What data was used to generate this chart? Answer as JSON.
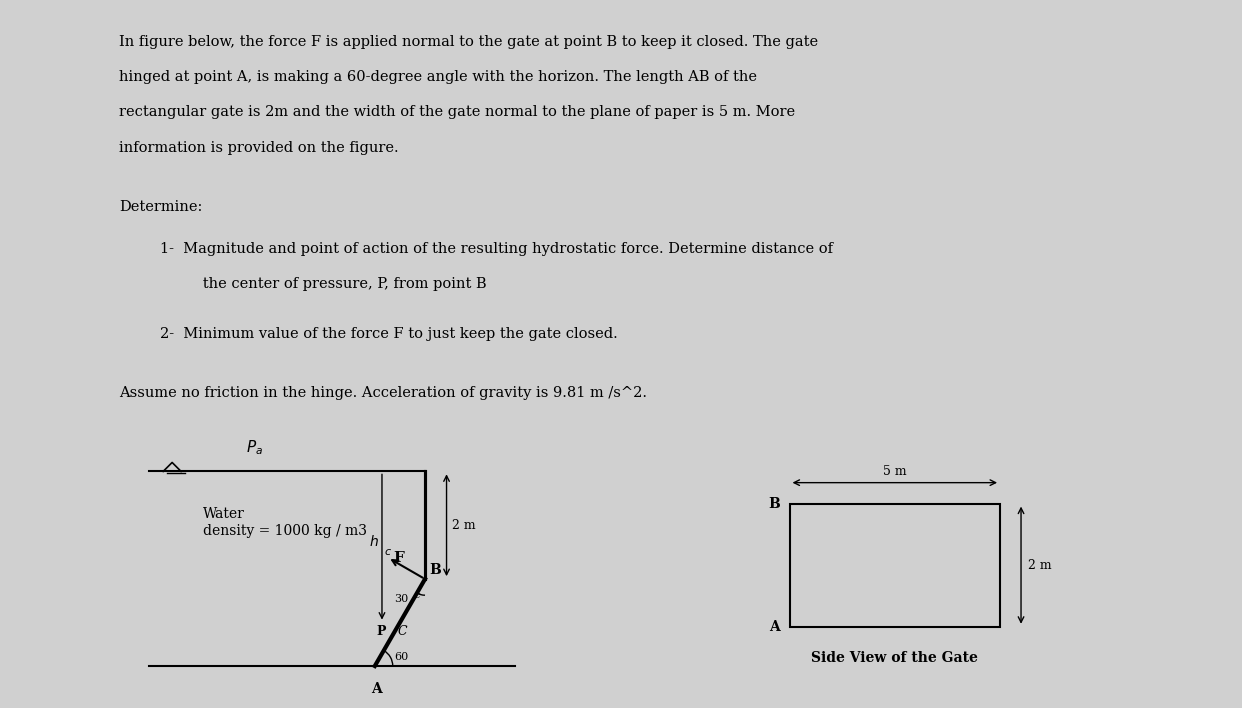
{
  "background_color": "#d0d0d0",
  "page_bg": "#ffffff",
  "title_lines": [
    "In figure below, the force F is applied normal to the gate at point B to keep it closed. The gate",
    "hinged at point A, is making a 60-degree angle with the horizon. The length AB of the",
    "rectangular gate is 2m and the width of the gate normal to the plane of paper is 5 m. More",
    "information is provided on the figure."
  ],
  "determine_label": "Determine:",
  "item1a": "1-  Magnitude and point of action of the resulting hydrostatic force. Determine distance of",
  "item1b": "      the center of pressure, P, from point B",
  "item2": "2-  Minimum value of the force F to just keep the gate closed.",
  "assumption": "Assume no friction in the hinge. Acceleration of gravity is 9.81 m /s^2.",
  "water_line1": "Water",
  "water_line2": "density = 1000 kg / m3",
  "Pa_label": "$P_a$",
  "two_m_label": "2 m",
  "B_label_left": "B",
  "F_label": "F",
  "P_label": "P",
  "C_label": "C",
  "angle_label": "30 c",
  "angle_bottom": "60",
  "A_label_left": "A",
  "B_label_right": "B",
  "A_label_right": "A",
  "five_m_label": "5 m",
  "two_m_label2": "2 m",
  "side_view_label": "Side View of the Gate"
}
